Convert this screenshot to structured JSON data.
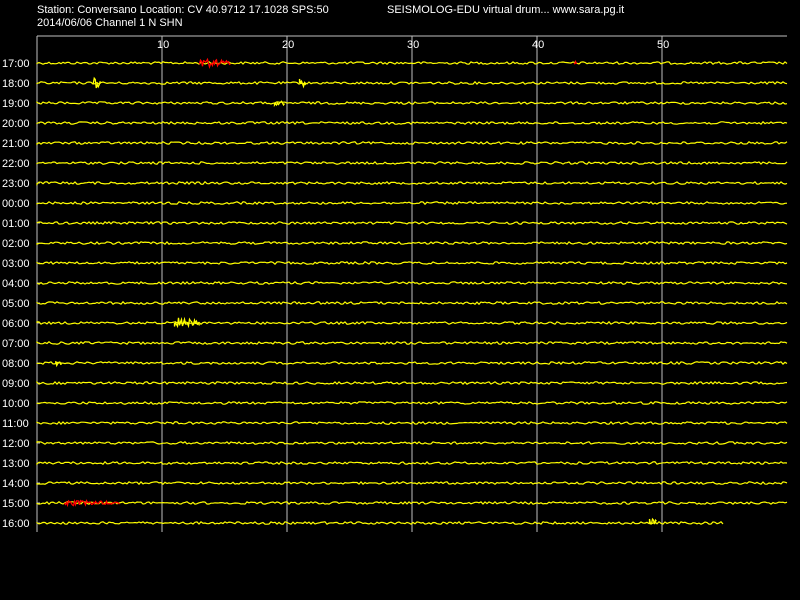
{
  "header": {
    "station_line": "Station: Conversano Location: CV 40.9712 17.1028 SPS:50",
    "app_line": "SEISMOLOG-EDU virtual drum... www.sara.pg.it",
    "date_line": "2014/06/06  Channel 1 N SHN"
  },
  "drum": {
    "minute_ticks": [
      "10",
      "20",
      "30",
      "40",
      "50"
    ],
    "minute_values": [
      10,
      20,
      30,
      40,
      50
    ],
    "minutes_per_row": 60,
    "hour_labels": [
      "17:00",
      "18:00",
      "19:00",
      "20:00",
      "21:00",
      "22:00",
      "23:00",
      "00:00",
      "01:00",
      "02:00",
      "03:00",
      "04:00",
      "05:00",
      "06:00",
      "07:00",
      "08:00",
      "09:00",
      "10:00",
      "11:00",
      "12:00",
      "13:00",
      "14:00",
      "15:00",
      "16:00"
    ],
    "last_row_end_minute": 55,
    "colors": {
      "background": "#000000",
      "trace": "#ffff00",
      "event": "#ff0000",
      "grid": "#c0c0c0",
      "text": "#ffffff"
    },
    "events": [
      {
        "row": 0,
        "minute": 13,
        "duration": 2.5,
        "color": "#ff0000",
        "amp": 5
      },
      {
        "row": 0,
        "minute": 43,
        "duration": 0.2,
        "color": "#ff0000",
        "amp": 6
      },
      {
        "row": 1,
        "minute": 4.5,
        "duration": 0.6,
        "color": "#ffff00",
        "amp": 7
      },
      {
        "row": 1,
        "minute": 21,
        "duration": 0.5,
        "color": "#ffff00",
        "amp": 6
      },
      {
        "row": 2,
        "minute": 19,
        "duration": 0.8,
        "color": "#ffff00",
        "amp": 4
      },
      {
        "row": 13,
        "minute": 11,
        "duration": 2,
        "color": "#ffff00",
        "amp": 6
      },
      {
        "row": 15,
        "minute": 1.5,
        "duration": 0.5,
        "color": "#ffff00",
        "amp": 3
      },
      {
        "row": 22,
        "minute": 2.2,
        "duration": 4.4,
        "color": "#ff0000",
        "amp": 3
      },
      {
        "row": 23,
        "minute": 49,
        "duration": 0.6,
        "color": "#ffff00",
        "amp": 5
      }
    ]
  }
}
